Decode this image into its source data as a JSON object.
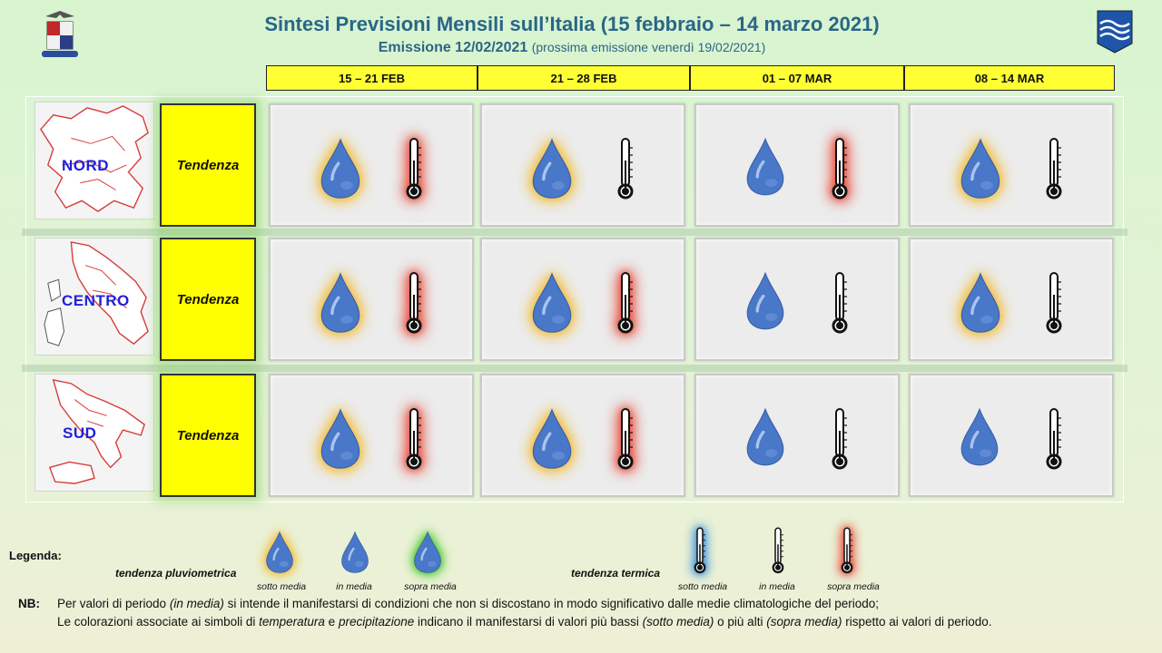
{
  "header": {
    "title": "Sintesi  Previsioni Mensili sull’Italia (15 febbraio – 14 marzo 2021)",
    "emission": "Emissione 12/02/2021",
    "next_emission": "(prossima emissione venerdì 19/02/2021)"
  },
  "periods": [
    "15 – 21 FEB",
    "21 – 28 FEB",
    "01 – 07 MAR",
    "08 – 14 MAR"
  ],
  "tendency_label": "Tendenza",
  "regions": [
    {
      "name": "NORD",
      "forecasts": [
        {
          "precip": "sotto media",
          "temp": "sopra media"
        },
        {
          "precip": "sotto media",
          "temp": "in media"
        },
        {
          "precip": "in media",
          "temp": "sopra media"
        },
        {
          "precip": "sotto media",
          "temp": "in media"
        }
      ]
    },
    {
      "name": "CENTRO",
      "forecasts": [
        {
          "precip": "sotto media",
          "temp": "sopra media"
        },
        {
          "precip": "sotto media",
          "temp": "sopra media"
        },
        {
          "precip": "in media",
          "temp": "in media"
        },
        {
          "precip": "sotto media",
          "temp": "in media"
        }
      ]
    },
    {
      "name": "SUD",
      "forecasts": [
        {
          "precip": "sotto media",
          "temp": "sopra media"
        },
        {
          "precip": "sotto media",
          "temp": "sopra media"
        },
        {
          "precip": "in media",
          "temp": "in media"
        },
        {
          "precip": "in media",
          "temp": "in media"
        }
      ]
    }
  ],
  "legend": {
    "title": "Legenda",
    "precip_label": "tendenza pluviometrica",
    "temp_label": "tendenza termica",
    "precip_items": [
      "sotto media",
      "in media",
      "sopra media"
    ],
    "temp_items": [
      "sotto media",
      "in media",
      "sopra media"
    ]
  },
  "notes": {
    "key": "NB:",
    "line1_a": "Per valori di periodo ",
    "line1_b": "(in media)",
    "line1_c": " si intende il manifestarsi di condizioni che non si discostano in modo significativo dalle medie climatologiche del periodo;",
    "line2_a": "Le colorazioni associate ai simboli di ",
    "line2_b": "temperatura",
    "line2_c": " e ",
    "line2_d": "precipitazione",
    "line2_e": " indicano il manifestarsi di valori più bassi ",
    "line2_f": "(sotto media)",
    "line2_g": " o più alti ",
    "line2_h": "(sopra media)",
    "line2_i": " rispetto ai valori di periodo."
  },
  "colors": {
    "glow_precip_below": "#f2c040",
    "glow_precip_above": "#55cc33",
    "glow_temp_below": "#3a8fd8",
    "glow_temp_above": "#e84a3a",
    "drop": "#4a78c8"
  },
  "icons": {
    "logo_left": "air-force-crest-icon",
    "logo_right": "weather-service-logo-icon",
    "precip": "raindrop-icon",
    "temp": "thermometer-icon"
  }
}
